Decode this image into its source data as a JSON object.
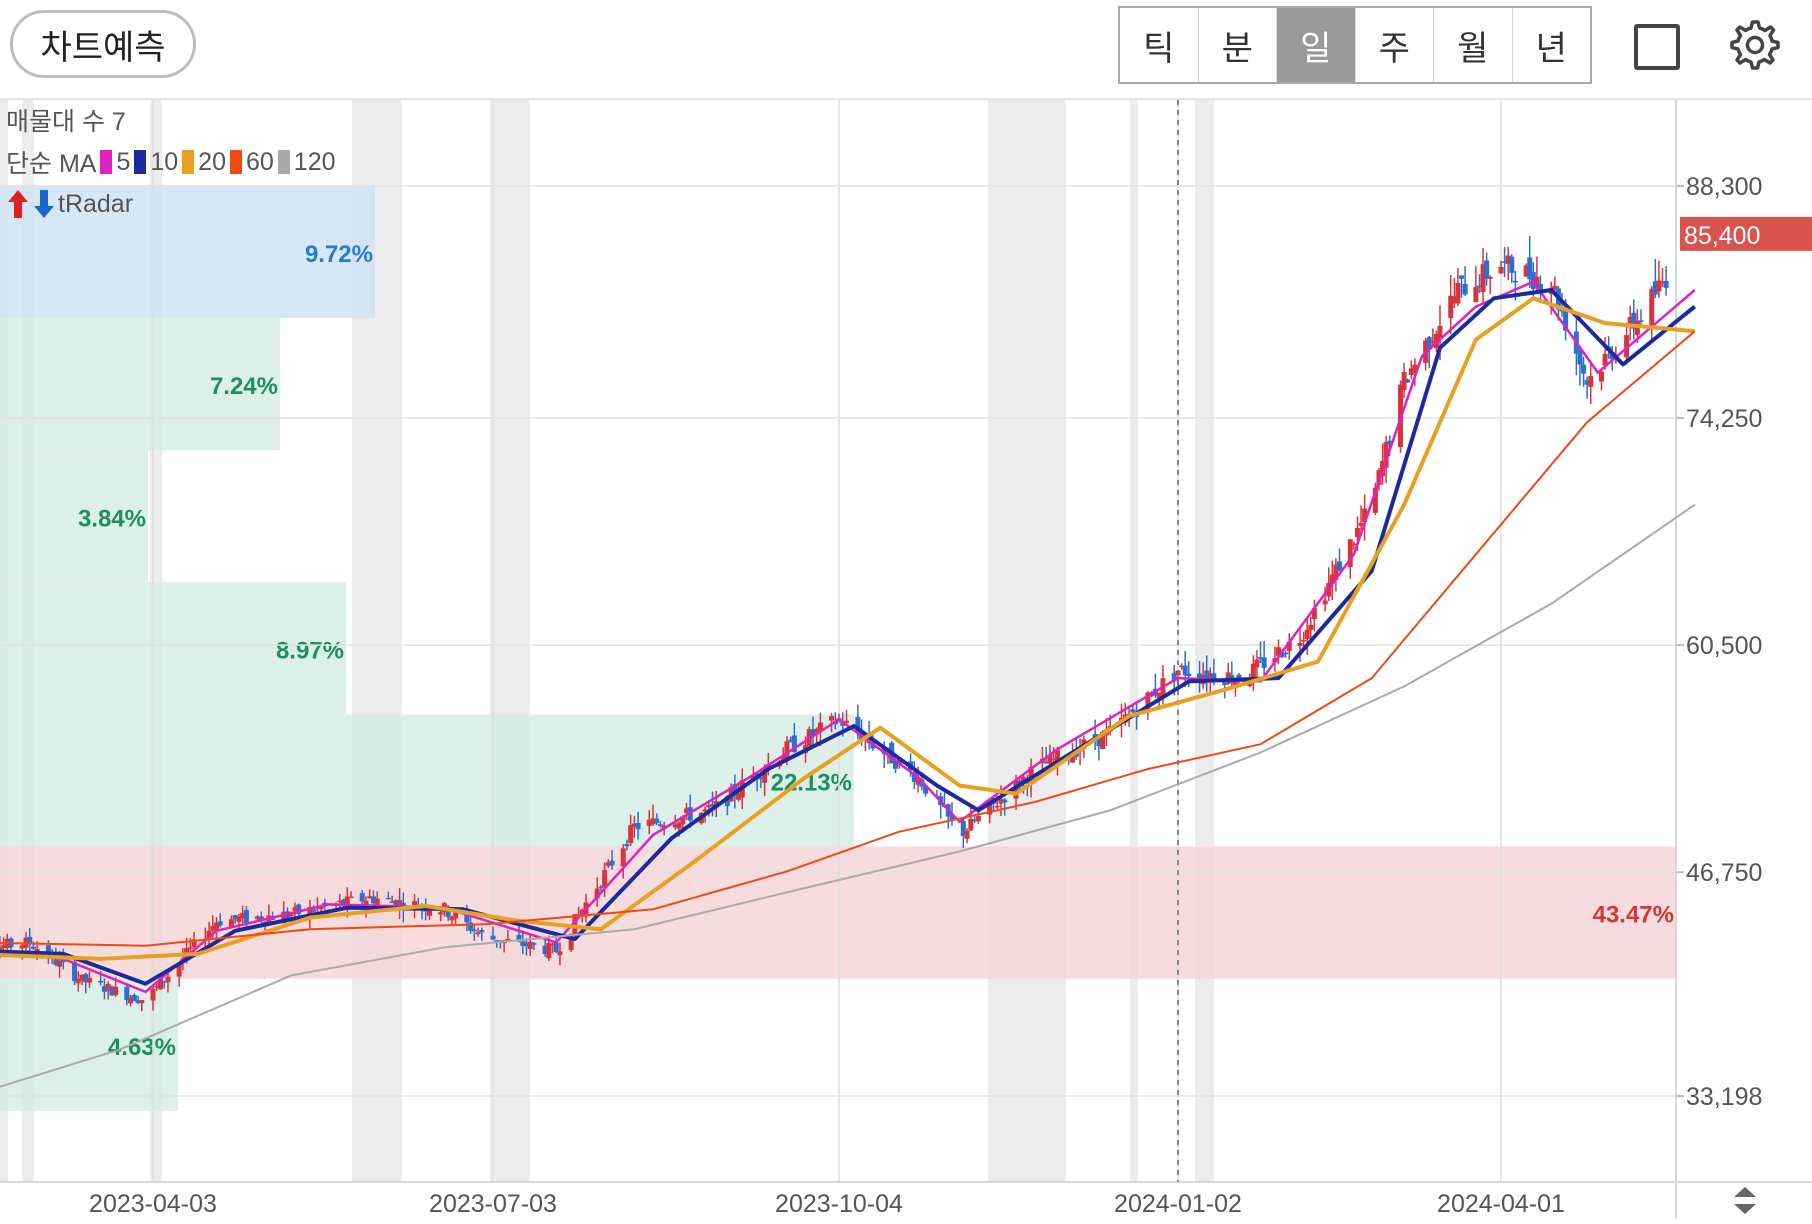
{
  "header": {
    "forecast_button": "차트예측",
    "periods": [
      "틱",
      "분",
      "일",
      "주",
      "월",
      "년"
    ],
    "active_period": "일"
  },
  "indicators": {
    "volume_profile": "매물대 수 7",
    "ma_label": "단순 MA",
    "ma_items": [
      {
        "period": "5",
        "color": "#e020c0"
      },
      {
        "period": "10",
        "color": "#1b2a9e"
      },
      {
        "period": "20",
        "color": "#e8a020"
      },
      {
        "period": "60",
        "color": "#f04a14"
      },
      {
        "period": "120",
        "color": "#aaaaaa"
      }
    ],
    "tradar": "tRadar"
  },
  "chart_data": {
    "type": "candlestick",
    "y_ticks": [
      "88,300",
      "74,250",
      "60,500",
      "46,750",
      "33,198"
    ],
    "y_tick_values": [
      88300,
      74250,
      60500,
      46750,
      33198
    ],
    "x_ticks": [
      "2023-04-03",
      "2023-07-03",
      "2023-10-04",
      "2024-01-02",
      "2024-04-01"
    ],
    "current_price": "85,400",
    "volume_profile_bands": [
      {
        "percent": "9.72%",
        "low": 80300,
        "high": 88300,
        "color": "#cfe3f5",
        "text_color": "#2a7ad0"
      },
      {
        "percent": "7.24%",
        "low": 72300,
        "high": 80300,
        "color": "#d6ece4",
        "text_color": "#1a9060"
      },
      {
        "percent": "3.84%",
        "low": 64300,
        "high": 72300,
        "color": "#d6ece4",
        "text_color": "#1a9060"
      },
      {
        "percent": "8.97%",
        "low": 56300,
        "high": 64300,
        "color": "#d6ece4",
        "text_color": "#1a9060"
      },
      {
        "percent": "22.13%",
        "low": 48300,
        "high": 56300,
        "color": "#d6ece4",
        "text_color": "#1a9060"
      },
      {
        "percent": "43.47%",
        "low": 40300,
        "high": 48300,
        "color": "#f5d6d6",
        "text_color": "#d03838"
      },
      {
        "percent": "4.63%",
        "low": 32300,
        "high": 40300,
        "color": "#d6ece4",
        "text_color": "#1a9060"
      }
    ],
    "close_approx": [
      {
        "date": "2023-02-13",
        "close": 42000
      },
      {
        "date": "2023-03-01",
        "close": 42500
      },
      {
        "date": "2023-03-15",
        "close": 40200
      },
      {
        "date": "2023-04-01",
        "close": 39000
      },
      {
        "date": "2023-04-20",
        "close": 43800
      },
      {
        "date": "2023-05-10",
        "close": 44200
      },
      {
        "date": "2023-05-31",
        "close": 45200
      },
      {
        "date": "2023-06-20",
        "close": 44500
      },
      {
        "date": "2023-07-01",
        "close": 42800
      },
      {
        "date": "2023-07-20",
        "close": 42000
      },
      {
        "date": "2023-08-10",
        "close": 49500
      },
      {
        "date": "2023-08-31",
        "close": 50500
      },
      {
        "date": "2023-09-20",
        "close": 54200
      },
      {
        "date": "2023-10-04",
        "close": 56000
      },
      {
        "date": "2023-10-25",
        "close": 52500
      },
      {
        "date": "2023-11-05",
        "close": 49000
      },
      {
        "date": "2023-11-25",
        "close": 53000
      },
      {
        "date": "2023-12-15",
        "close": 55200
      },
      {
        "date": "2024-01-02",
        "close": 59000
      },
      {
        "date": "2024-01-20",
        "close": 58500
      },
      {
        "date": "2024-02-05",
        "close": 61000
      },
      {
        "date": "2024-02-25",
        "close": 69000
      },
      {
        "date": "2024-03-05",
        "close": 76500
      },
      {
        "date": "2024-03-20",
        "close": 82000
      },
      {
        "date": "2024-04-01",
        "close": 83500
      },
      {
        "date": "2024-04-15",
        "close": 82500
      },
      {
        "date": "2024-04-25",
        "close": 76500
      },
      {
        "date": "2024-05-10",
        "close": 80500
      },
      {
        "date": "2024-05-25",
        "close": 85400
      }
    ],
    "moving_averages": [
      {
        "period": "5",
        "color": "#e020c0",
        "points": [
          {
            "date": "2023-02-13",
            "v": 42200
          },
          {
            "date": "2023-03-10",
            "v": 41500
          },
          {
            "date": "2023-04-01",
            "v": 39500
          },
          {
            "date": "2023-04-20",
            "v": 43200
          },
          {
            "date": "2023-05-20",
            "v": 44800
          },
          {
            "date": "2023-06-20",
            "v": 44600
          },
          {
            "date": "2023-07-20",
            "v": 42500
          },
          {
            "date": "2023-08-15",
            "v": 49000
          },
          {
            "date": "2023-09-10",
            "v": 52500
          },
          {
            "date": "2023-10-04",
            "v": 56000
          },
          {
            "date": "2023-10-25",
            "v": 52500
          },
          {
            "date": "2023-11-05",
            "v": 49800
          },
          {
            "date": "2023-12-01",
            "v": 54200
          },
          {
            "date": "2024-01-02",
            "v": 58500
          },
          {
            "date": "2024-01-25",
            "v": 58300
          },
          {
            "date": "2024-02-20",
            "v": 66000
          },
          {
            "date": "2024-03-10",
            "v": 78000
          },
          {
            "date": "2024-03-25",
            "v": 81000
          },
          {
            "date": "2024-04-10",
            "v": 82500
          },
          {
            "date": "2024-04-28",
            "v": 77000
          },
          {
            "date": "2024-05-25",
            "v": 82000
          }
        ]
      },
      {
        "period": "10",
        "color": "#1b2a9e",
        "points": [
          {
            "date": "2023-02-13",
            "v": 42000
          },
          {
            "date": "2023-03-10",
            "v": 41800
          },
          {
            "date": "2023-04-01",
            "v": 40000
          },
          {
            "date": "2023-04-25",
            "v": 43200
          },
          {
            "date": "2023-05-25",
            "v": 44600
          },
          {
            "date": "2023-06-25",
            "v": 44500
          },
          {
            "date": "2023-07-25",
            "v": 42700
          },
          {
            "date": "2023-08-20",
            "v": 48800
          },
          {
            "date": "2023-09-15",
            "v": 53000
          },
          {
            "date": "2023-10-08",
            "v": 55600
          },
          {
            "date": "2023-10-30",
            "v": 52000
          },
          {
            "date": "2023-11-10",
            "v": 50500
          },
          {
            "date": "2023-12-05",
            "v": 54000
          },
          {
            "date": "2024-01-05",
            "v": 58300
          },
          {
            "date": "2024-01-30",
            "v": 58500
          },
          {
            "date": "2024-02-25",
            "v": 65000
          },
          {
            "date": "2024-03-15",
            "v": 78500
          },
          {
            "date": "2024-03-30",
            "v": 81500
          },
          {
            "date": "2024-04-15",
            "v": 82000
          },
          {
            "date": "2024-05-05",
            "v": 77500
          },
          {
            "date": "2024-05-25",
            "v": 81000
          }
        ]
      },
      {
        "period": "20",
        "color": "#e8a020",
        "points": [
          {
            "date": "2023-02-13",
            "v": 41800
          },
          {
            "date": "2023-03-20",
            "v": 41500
          },
          {
            "date": "2023-04-15",
            "v": 41800
          },
          {
            "date": "2023-05-15",
            "v": 44000
          },
          {
            "date": "2023-06-15",
            "v": 44700
          },
          {
            "date": "2023-07-10",
            "v": 43800
          },
          {
            "date": "2023-08-01",
            "v": 43300
          },
          {
            "date": "2023-08-25",
            "v": 47200
          },
          {
            "date": "2023-09-25",
            "v": 52500
          },
          {
            "date": "2023-10-15",
            "v": 55500
          },
          {
            "date": "2023-11-05",
            "v": 52000
          },
          {
            "date": "2023-11-20",
            "v": 51500
          },
          {
            "date": "2023-12-20",
            "v": 56200
          },
          {
            "date": "2024-01-15",
            "v": 57800
          },
          {
            "date": "2024-02-10",
            "v": 59500
          },
          {
            "date": "2024-03-05",
            "v": 69000
          },
          {
            "date": "2024-03-25",
            "v": 79000
          },
          {
            "date": "2024-04-10",
            "v": 81500
          },
          {
            "date": "2024-04-30",
            "v": 80000
          },
          {
            "date": "2024-05-25",
            "v": 79500
          }
        ]
      },
      {
        "period": "60",
        "color": "#f04a14",
        "points": [
          {
            "date": "2023-02-13",
            "v": 42500
          },
          {
            "date": "2023-04-01",
            "v": 42300
          },
          {
            "date": "2023-05-15",
            "v": 43300
          },
          {
            "date": "2023-07-01",
            "v": 43600
          },
          {
            "date": "2023-08-15",
            "v": 44500
          },
          {
            "date": "2023-09-20",
            "v": 46800
          },
          {
            "date": "2023-10-20",
            "v": 49200
          },
          {
            "date": "2023-11-25",
            "v": 51000
          },
          {
            "date": "2023-12-25",
            "v": 53000
          },
          {
            "date": "2024-01-25",
            "v": 54500
          },
          {
            "date": "2024-02-25",
            "v": 58500
          },
          {
            "date": "2024-03-25",
            "v": 66000
          },
          {
            "date": "2024-04-25",
            "v": 74000
          },
          {
            "date": "2024-05-25",
            "v": 79500
          }
        ]
      },
      {
        "period": "120",
        "color": "#aaaaaa",
        "points": [
          {
            "date": "2023-02-13",
            "v": 33200
          },
          {
            "date": "2023-03-25",
            "v": 36000
          },
          {
            "date": "2023-05-10",
            "v": 40500
          },
          {
            "date": "2023-06-20",
            "v": 42200
          },
          {
            "date": "2023-08-10",
            "v": 43300
          },
          {
            "date": "2023-09-25",
            "v": 45800
          },
          {
            "date": "2023-11-05",
            "v": 48000
          },
          {
            "date": "2023-12-15",
            "v": 50500
          },
          {
            "date": "2024-01-25",
            "v": 54000
          },
          {
            "date": "2024-03-05",
            "v": 58000
          },
          {
            "date": "2024-04-15",
            "v": 63000
          },
          {
            "date": "2024-05-25",
            "v": 69000
          }
        ]
      }
    ]
  }
}
